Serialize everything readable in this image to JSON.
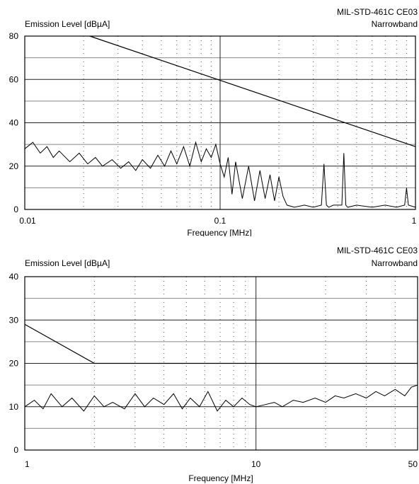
{
  "chart_data": [
    {
      "type": "line",
      "title": "MIL-STD-461C CE03",
      "subtitle": "Narrowband",
      "xlabel": "Frequency [MHz]",
      "ylabel": "Emission Level [dBµA]",
      "x_scale": "log",
      "xlim": [
        0.01,
        1
      ],
      "ylim": [
        0,
        80
      ],
      "x_ticks": [
        {
          "value": 0.01,
          "label": "0.01"
        },
        {
          "value": 0.1,
          "label": "0.1"
        },
        {
          "value": 1,
          "label": "1"
        }
      ],
      "y_ticks": [
        0,
        20,
        40,
        60,
        80
      ],
      "grid": true,
      "series": [
        {
          "role": "limit",
          "x": [
            0.0215,
            1
          ],
          "y": [
            80,
            29
          ]
        },
        {
          "role": "measured",
          "x": [
            0.01,
            0.011,
            0.012,
            0.013,
            0.014,
            0.015,
            0.017,
            0.019,
            0.021,
            0.023,
            0.025,
            0.028,
            0.031,
            0.034,
            0.037,
            0.04,
            0.044,
            0.048,
            0.052,
            0.056,
            0.06,
            0.065,
            0.07,
            0.075,
            0.08,
            0.085,
            0.09,
            0.095,
            0.1,
            0.105,
            0.11,
            0.115,
            0.12,
            0.13,
            0.14,
            0.15,
            0.16,
            0.17,
            0.18,
            0.19,
            0.2,
            0.21,
            0.22,
            0.24,
            0.27,
            0.3,
            0.33,
            0.34,
            0.35,
            0.36,
            0.38,
            0.42,
            0.43,
            0.44,
            0.45,
            0.5,
            0.6,
            0.7,
            0.8,
            0.88,
            0.9,
            0.92,
            1
          ],
          "y": [
            28,
            31,
            26,
            29,
            24,
            27,
            22,
            26,
            21,
            24,
            20,
            23,
            19,
            22,
            18,
            23,
            19,
            25,
            20,
            27,
            21,
            29,
            20,
            31,
            22,
            28,
            24,
            30,
            21,
            15,
            24,
            7,
            22,
            5,
            20,
            4,
            18,
            5,
            16,
            4,
            15,
            6,
            2,
            1,
            2,
            1,
            2,
            21,
            2,
            1,
            2,
            2,
            26,
            2,
            1,
            2,
            1,
            2,
            1,
            2,
            10,
            2,
            1
          ]
        }
      ]
    },
    {
      "type": "line",
      "title": "MIL-STD-461C CE03",
      "subtitle": "Narrowband",
      "xlabel": "Frequency [MHz]",
      "ylabel": "Emission Level [dBµA]",
      "x_scale": "log",
      "xlim": [
        1,
        50
      ],
      "ylim": [
        0,
        40
      ],
      "x_ticks": [
        {
          "value": 1,
          "label": "1"
        },
        {
          "value": 10,
          "label": "10"
        },
        {
          "value": 50,
          "label": "50"
        }
      ],
      "y_ticks": [
        0,
        10,
        20,
        30,
        40
      ],
      "grid": true,
      "series": [
        {
          "role": "limit",
          "x": [
            1,
            2,
            50
          ],
          "y": [
            29,
            20,
            20
          ]
        },
        {
          "role": "measured",
          "x": [
            1,
            1.1,
            1.2,
            1.3,
            1.45,
            1.6,
            1.8,
            2,
            2.2,
            2.4,
            2.7,
            3,
            3.3,
            3.6,
            4,
            4.4,
            4.8,
            5.2,
            5.7,
            6.2,
            6.8,
            7.4,
            8,
            8.7,
            9.4,
            10,
            11,
            12,
            13,
            14.5,
            16,
            18,
            20,
            22,
            24,
            27,
            30,
            33,
            36,
            40,
            44,
            47,
            50
          ],
          "y": [
            10,
            11.5,
            9.5,
            13,
            10,
            12,
            9,
            12.5,
            10,
            11,
            9.5,
            13,
            10,
            12,
            10.5,
            13,
            9.5,
            12,
            10,
            13.5,
            9,
            11.5,
            10,
            12,
            10.5,
            10,
            10.5,
            11,
            10,
            11.5,
            11,
            12,
            11,
            12.5,
            12,
            13,
            12,
            13.5,
            12.5,
            14,
            12.5,
            14.5,
            15
          ]
        }
      ]
    }
  ]
}
